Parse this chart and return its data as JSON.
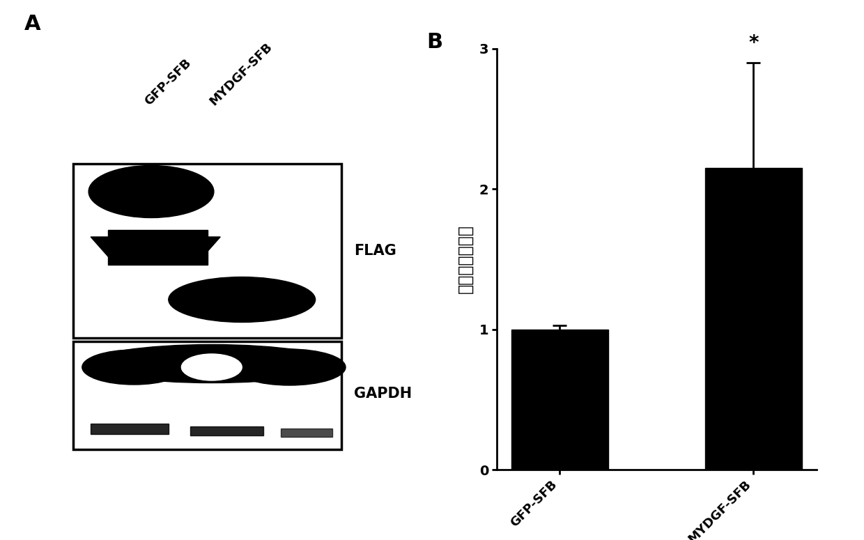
{
  "panel_A_label": "A",
  "panel_B_label": "B",
  "bar_categories": [
    "GFP-SFB",
    "MYDGF-SFB"
  ],
  "bar_values": [
    1.0,
    2.15
  ],
  "bar_errors": [
    0.03,
    0.75
  ],
  "bar_color": "#000000",
  "ylabel_chinese": "相对端粒酶活性",
  "ylim": [
    0,
    3.0
  ],
  "yticks": [
    0,
    1,
    2,
    3
  ],
  "significance_star": "*",
  "flag_label": "FLAG",
  "gapdh_label": "GAPDH",
  "col_labels": [
    "GFP-SFB",
    "MYDGF-SFB"
  ],
  "background_color": "#ffffff",
  "bar_width": 0.5,
  "font_size_labels": 13,
  "font_size_axis": 13,
  "font_size_panel": 22
}
